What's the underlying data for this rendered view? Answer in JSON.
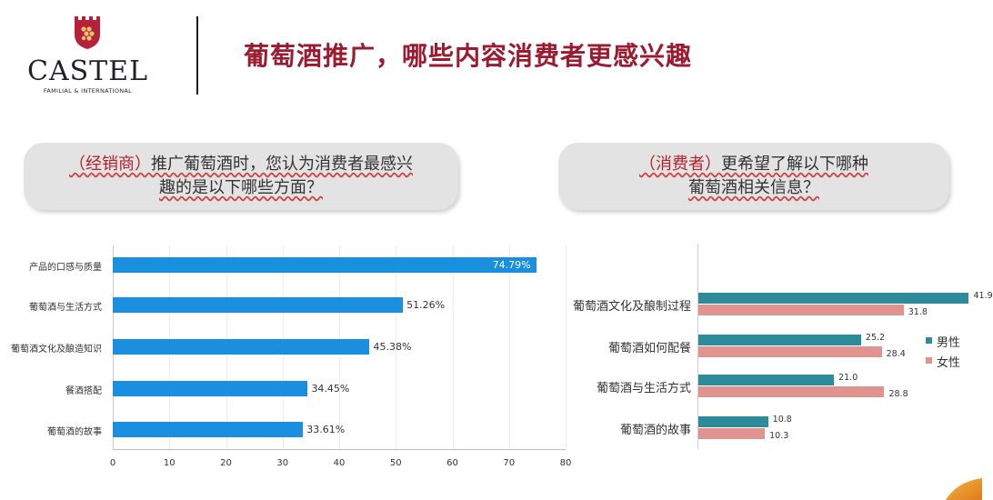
{
  "logo": {
    "wordmark": "CASTEL",
    "tagline": "FAMILIAL & INTERNATIONAL",
    "crest_color": "#b5213a"
  },
  "title": "葡萄酒推广，哪些内容消费者更感兴趣",
  "left_question": {
    "highlight": "（经销商）",
    "line1_rest": "推广葡萄酒时，您认为消费者最感兴",
    "line2": "趣的是以下哪些方面？"
  },
  "right_question": {
    "highlight": "（消费者）",
    "line1_rest": "更希望了解以下哪种",
    "line2": "葡萄酒相关信息？"
  },
  "chart_data": [
    {
      "type": "bar",
      "orientation": "horizontal",
      "categories": [
        "产品的口感与质量",
        "葡萄酒与生活方式",
        "葡萄酒文化及酿造知识",
        "餐酒搭配",
        "葡萄酒的故事"
      ],
      "values": [
        74.79,
        51.26,
        45.38,
        34.45,
        33.61
      ],
      "value_labels": [
        "74.79%",
        "51.26%",
        "45.38%",
        "34.45%",
        "33.61%"
      ],
      "xlim": [
        0,
        80
      ],
      "xticks": [
        "0",
        "10",
        "20",
        "30",
        "40",
        "50",
        "60",
        "70",
        "80"
      ],
      "bar_color": "#1a8fe0",
      "grid": true
    },
    {
      "type": "bar",
      "orientation": "horizontal",
      "categories": [
        "葡萄酒文化及酿制过程",
        "葡萄酒如何配餐",
        "葡萄酒与生活方式",
        "葡萄酒的故事"
      ],
      "series": [
        {
          "name": "男性",
          "values": [
            41.9,
            25.2,
            21.0,
            10.8
          ],
          "labels": [
            "41.9",
            "25.2",
            "21.0",
            "10.8"
          ],
          "color": "#2e8b9a"
        },
        {
          "name": "女性",
          "values": [
            31.8,
            28.4,
            28.8,
            10.3
          ],
          "labels": [
            "31.8",
            "28.4",
            "28.8",
            "10.3"
          ],
          "color": "#e0938f"
        }
      ],
      "legend": "right",
      "grid": false
    }
  ]
}
